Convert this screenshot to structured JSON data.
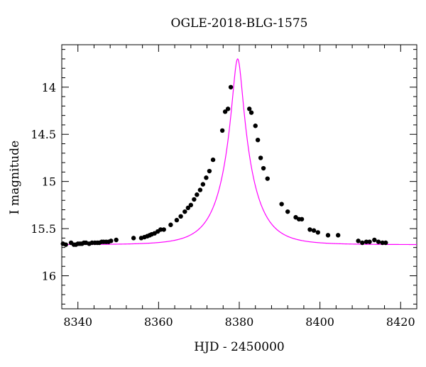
{
  "chart_data": {
    "type": "scatter",
    "title": "OGLE-2018-BLG-1575",
    "xlabel": "HJD - 2450000",
    "ylabel": "I magnitude",
    "xlim": [
      8336,
      8424
    ],
    "ylim": [
      16.35,
      13.55
    ],
    "y_inverted": true,
    "x_ticks": [
      8340,
      8360,
      8380,
      8400,
      8420
    ],
    "y_ticks": [
      14,
      14.5,
      15,
      15.5,
      16
    ],
    "y_tick_labels": [
      "14",
      "14.5",
      "15",
      "15.5",
      "16"
    ],
    "grid": false,
    "colors": {
      "points": "#000000",
      "model": "#ff00ff"
    },
    "model": {
      "baseline_mag": 15.67,
      "peak_mag": 13.7,
      "t0": 8379.6,
      "tE": 7.0
    },
    "series": [
      {
        "x": [
          8336.3,
          8337.0,
          8338.3,
          8339.0,
          8339.5,
          8340.0,
          8340.5,
          8341.0,
          8341.5,
          8342.0,
          8342.8,
          8343.5,
          8344.2,
          8344.8,
          8345.3,
          8345.9,
          8346.4,
          8347.0,
          8347.6,
          8348.2,
          8349.5,
          8353.8,
          8355.7,
          8356.5,
          8357.2,
          8357.8,
          8358.3,
          8359.0,
          8359.8,
          8360.5,
          8361.3,
          8363.0,
          8364.5,
          8365.5,
          8366.5,
          8367.3,
          8368.0,
          8368.8,
          8369.5,
          8370.3,
          8371.0,
          8371.8,
          8372.6,
          8373.5,
          8375.8,
          8376.5,
          8377.2,
          8377.9,
          8382.5,
          8383.0,
          8384.0,
          8384.6,
          8385.3,
          8386.0,
          8387.0,
          8390.5,
          8392.0,
          8394.0,
          8394.8,
          8395.5,
          8397.5,
          8398.5,
          8399.5,
          8402.0,
          8404.5,
          8409.5,
          8410.5,
          8411.5,
          8412.3,
          8413.5,
          8414.5,
          8415.5,
          8416.3
        ],
        "y": [
          15.66,
          15.67,
          15.65,
          15.67,
          15.67,
          15.66,
          15.66,
          15.66,
          15.65,
          15.65,
          15.66,
          15.65,
          15.65,
          15.65,
          15.65,
          15.64,
          15.64,
          15.64,
          15.64,
          15.63,
          15.62,
          15.6,
          15.6,
          15.59,
          15.58,
          15.57,
          15.56,
          15.55,
          15.53,
          15.51,
          15.51,
          15.46,
          15.41,
          15.37,
          15.32,
          15.28,
          15.25,
          15.19,
          15.14,
          15.09,
          15.03,
          14.96,
          14.89,
          14.77,
          14.46,
          14.26,
          14.23,
          14.0,
          14.23,
          14.27,
          14.41,
          14.56,
          14.75,
          14.86,
          14.97,
          15.24,
          15.32,
          15.38,
          15.4,
          15.4,
          15.51,
          15.52,
          15.54,
          15.57,
          15.57,
          15.63,
          15.65,
          15.64,
          15.64,
          15.62,
          15.64,
          15.65,
          15.65
        ]
      }
    ]
  }
}
